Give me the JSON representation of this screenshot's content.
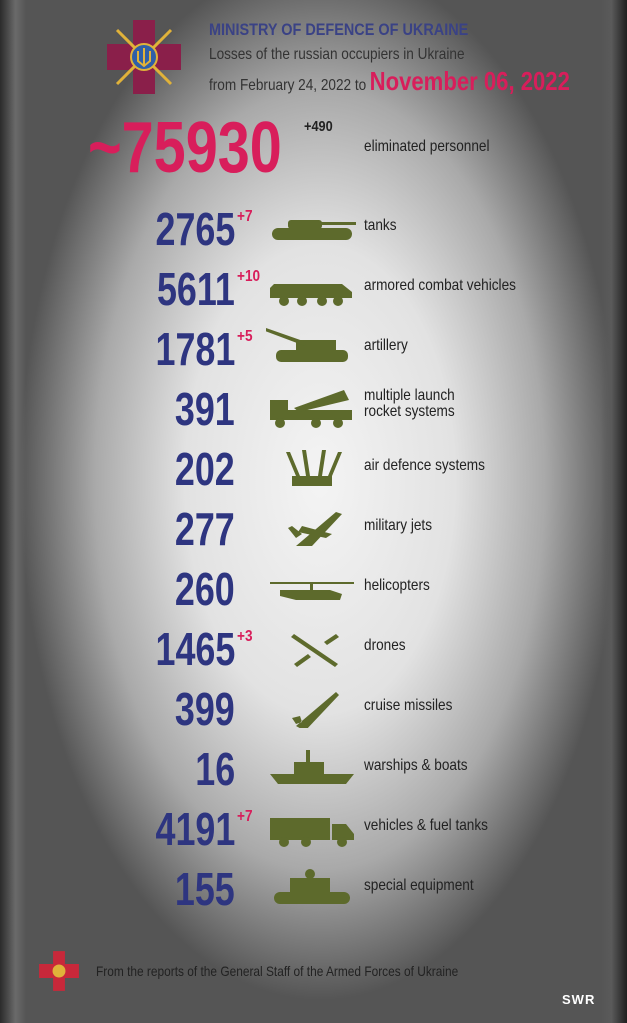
{
  "header": {
    "title": "MINISTRY OF DEFENCE OF UKRAINE",
    "line1": "Losses of the russian occupiers in Ukraine",
    "line2": "from February 24, 2022 to",
    "date": "November 06, 2022"
  },
  "personnel": {
    "value": "~75930",
    "delta": "+490",
    "label": "eliminated personnel"
  },
  "rows": [
    {
      "value": "2765",
      "delta": "+7",
      "label": "tanks",
      "icon": "tank-icon"
    },
    {
      "value": "5611",
      "delta": "+10",
      "label": "armored combat vehicles",
      "icon": "apc-icon"
    },
    {
      "value": "1781",
      "delta": "+5",
      "label": "artillery",
      "icon": "artillery-icon"
    },
    {
      "value": "391",
      "delta": "",
      "label": "multiple launch rocket systems",
      "icon": "mlrs-icon"
    },
    {
      "value": "202",
      "delta": "",
      "label": "air defence systems",
      "icon": "air-defence-icon"
    },
    {
      "value": "277",
      "delta": "",
      "label": "military jets",
      "icon": "jet-icon"
    },
    {
      "value": "260",
      "delta": "",
      "label": "helicopters",
      "icon": "helicopter-icon"
    },
    {
      "value": "1465",
      "delta": "+3",
      "label": "drones",
      "icon": "drone-icon"
    },
    {
      "value": "399",
      "delta": "",
      "label": "cruise missiles",
      "icon": "missile-icon"
    },
    {
      "value": "16",
      "delta": "",
      "label": "warships & boats",
      "icon": "warship-icon"
    },
    {
      "value": "4191",
      "delta": "+7",
      "label": "vehicles & fuel tanks",
      "icon": "truck-icon"
    },
    {
      "value": "155",
      "delta": "",
      "label": "special equipment",
      "icon": "special-equipment-icon"
    }
  ],
  "footer": {
    "text": "From the reports of the General Staff of the Armed Forces of Ukraine",
    "brand": "SWR"
  },
  "colors": {
    "accent": "#d81e5b",
    "numbers": "#2e3580",
    "icons": "#5d6a2c"
  }
}
